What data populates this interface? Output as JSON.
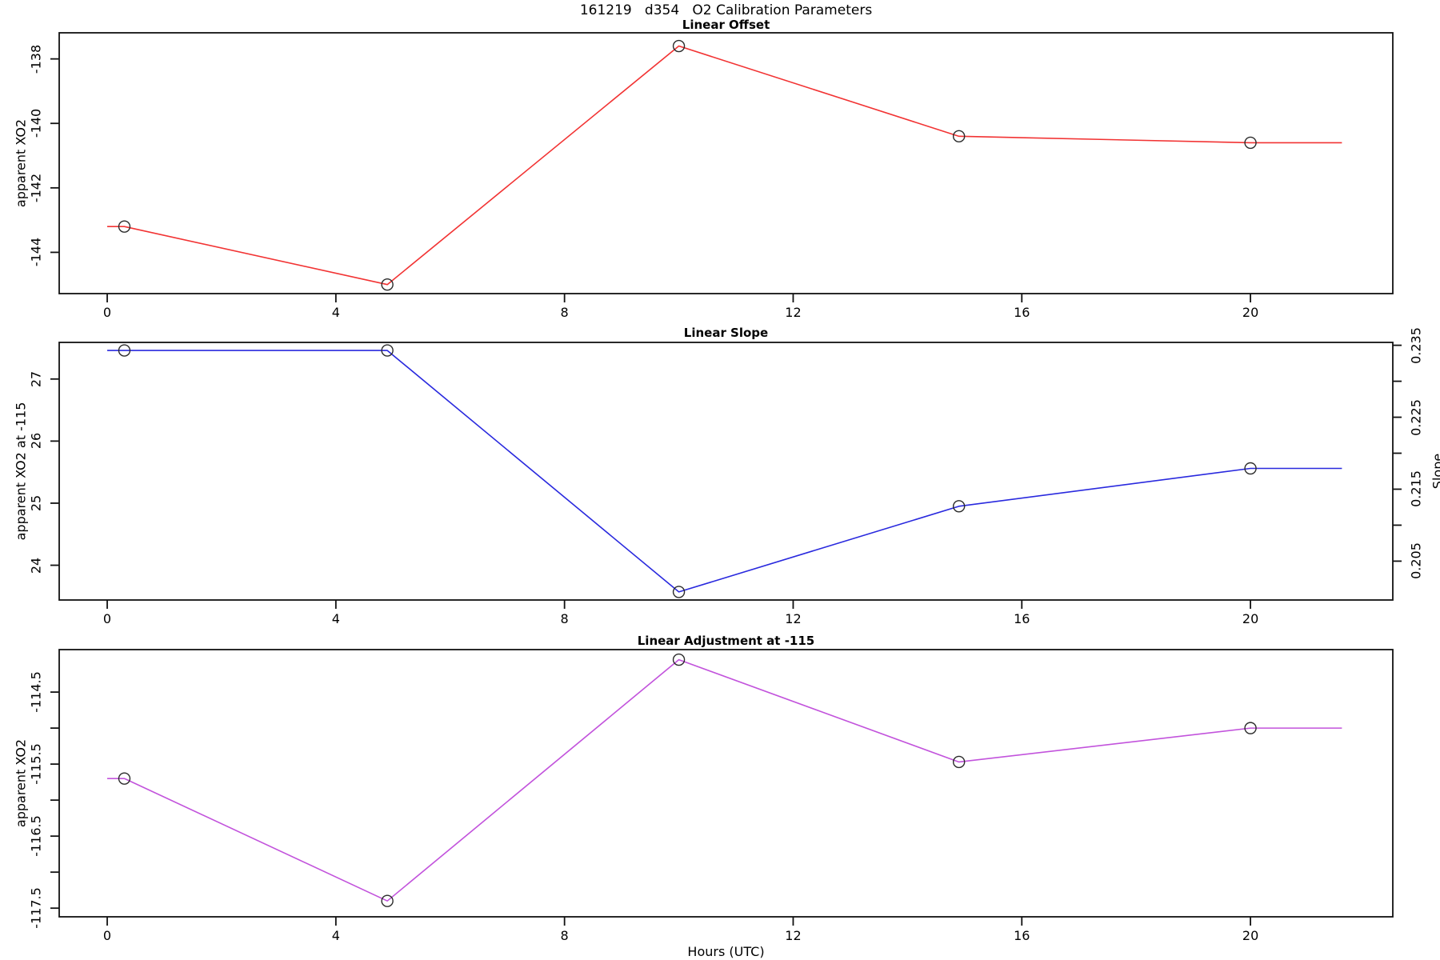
{
  "figure": {
    "title": "161219   d354   O2 Calibration Parameters",
    "xlabel": "Hours (UTC)",
    "background": "#ffffff",
    "axis_color": "#111111",
    "marker_color": "#2b2b2b"
  },
  "chart_data": [
    {
      "type": "line",
      "title": "Linear Offset",
      "ylabel": "apparent XO2",
      "xlim": [
        -0.84,
        22.49
      ],
      "ylim": [
        -145.28,
        -137.19
      ],
      "x_ticks": [
        0,
        4,
        8,
        12,
        16,
        20
      ],
      "x_tick_labels": [
        "0",
        "4",
        "8",
        "12",
        "16",
        "20"
      ],
      "y_ticks": [
        -144,
        -142,
        -140,
        -138
      ],
      "y_tick_labels": [
        "-144",
        "-142",
        "-140",
        "-138"
      ],
      "grid": false,
      "series": [
        {
          "name": "linear-offset",
          "color": "#f23333",
          "marker": "open-circle",
          "line_x": [
            0,
            0.3,
            4.9,
            10.0,
            14.9,
            20.0,
            21.6
          ],
          "line_y": [
            -143.2,
            -143.2,
            -145.0,
            -137.6,
            -140.4,
            -140.6,
            -140.6
          ],
          "point_x": [
            0.3,
            4.9,
            10.0,
            14.9,
            20.0
          ],
          "point_y": [
            -143.2,
            -145.0,
            -137.6,
            -140.4,
            -140.6
          ]
        }
      ]
    },
    {
      "type": "line",
      "title": "Linear Slope",
      "ylabel": "apparent XO2 at -115",
      "y2label": "Slope",
      "xlim": [
        -0.84,
        22.49
      ],
      "ylim": [
        23.44,
        27.59
      ],
      "y2lim": [
        0.1996,
        0.2354
      ],
      "x_ticks": [
        0,
        4,
        8,
        12,
        16,
        20
      ],
      "x_tick_labels": [
        "0",
        "4",
        "8",
        "12",
        "16",
        "20"
      ],
      "y_ticks": [
        24,
        25,
        26,
        27
      ],
      "y_tick_labels": [
        "24",
        "25",
        "26",
        "27"
      ],
      "y2_ticks": [
        0.205,
        0.21,
        0.215,
        0.22,
        0.225,
        0.23,
        0.235
      ],
      "y2_tick_labels": [
        "0.205",
        "",
        "0.215",
        "",
        "0.225",
        "",
        "0.235"
      ],
      "grid": false,
      "series": [
        {
          "name": "linear-slope",
          "color": "#2929de",
          "marker": "open-circle",
          "line_x": [
            0,
            0.3,
            4.9,
            10.0,
            14.9,
            20.0,
            21.6
          ],
          "line_y": [
            27.46,
            27.46,
            27.46,
            23.57,
            24.95,
            25.56,
            25.56
          ],
          "point_x": [
            0.3,
            4.9,
            10.0,
            14.9,
            20.0
          ],
          "point_y": [
            27.46,
            27.46,
            23.57,
            24.95,
            25.56
          ]
        }
      ]
    },
    {
      "type": "line",
      "title": "Linear Adjustment at -115",
      "ylabel": "apparent XO2",
      "xlim": [
        -0.84,
        22.49
      ],
      "ylim": [
        -117.62,
        -113.91
      ],
      "x_ticks": [
        0,
        4,
        8,
        12,
        16,
        20
      ],
      "x_tick_labels": [
        "0",
        "4",
        "8",
        "12",
        "16",
        "20"
      ],
      "y_ticks": [
        -117.5,
        -117,
        -116.5,
        -116,
        -115.5,
        -115,
        -114.5
      ],
      "y_tick_labels": [
        "-117.5",
        "",
        "-116.5",
        "",
        "-115.5",
        "",
        "-114.5"
      ],
      "grid": false,
      "series": [
        {
          "name": "linear-adjustment",
          "color": "#c253dc",
          "marker": "open-circle",
          "line_x": [
            0,
            0.3,
            4.9,
            10.0,
            14.9,
            20.0,
            21.6
          ],
          "line_y": [
            -115.7,
            -115.7,
            -117.4,
            -114.05,
            -115.47,
            -115.0,
            -115.0
          ],
          "point_x": [
            0.3,
            4.9,
            10.0,
            14.9,
            20.0
          ],
          "point_y": [
            -115.7,
            -117.4,
            -114.05,
            -115.47,
            -115.0
          ]
        }
      ]
    }
  ]
}
